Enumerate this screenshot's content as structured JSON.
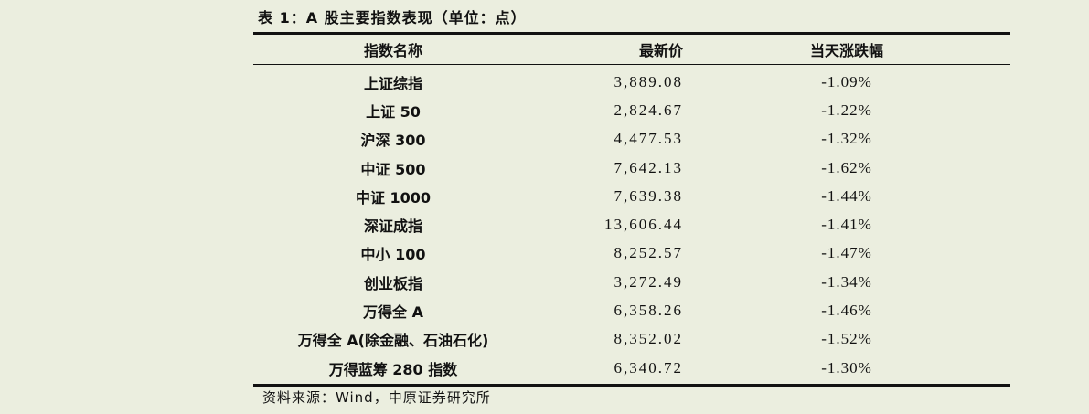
{
  "title": "表 1：A 股主要指数表现（单位：点）",
  "table": {
    "headers": [
      "指数名称",
      "最新价",
      "当天涨跌幅"
    ],
    "rows": [
      [
        "上证综指",
        "3,889.08",
        "-1.09%"
      ],
      [
        "上证 50",
        "2,824.67",
        "-1.22%"
      ],
      [
        "沪深 300",
        "4,477.53",
        "-1.32%"
      ],
      [
        "中证 500",
        "7,642.13",
        "-1.62%"
      ],
      [
        "中证 1000",
        "7,639.38",
        "-1.44%"
      ],
      [
        "深证成指",
        "13,606.44",
        "-1.41%"
      ],
      [
        "中小 100",
        "8,252.57",
        "-1.47%"
      ],
      [
        "创业板指",
        "3,272.49",
        "-1.34%"
      ],
      [
        "万得全 A",
        "6,358.26",
        "-1.46%"
      ],
      [
        "万得全 A(除金融、石油石化)",
        "8,352.02",
        "-1.52%"
      ],
      [
        "万得蓝筹 280 指数",
        "6,340.72",
        "-1.30%"
      ]
    ]
  },
  "source": "资料来源：Wind，中原证券研究所"
}
